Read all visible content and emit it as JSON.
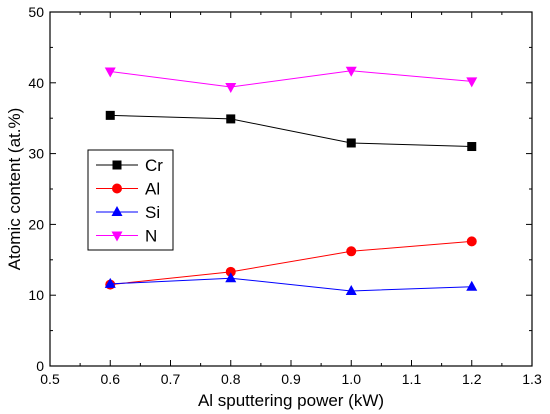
{
  "chart_data": {
    "type": "line",
    "title": "",
    "xlabel": "Al sputtering power (kW)",
    "ylabel": "Atomic content (at.%)",
    "xlim": [
      0.5,
      1.3
    ],
    "ylim": [
      0,
      50
    ],
    "xticks": [
      "0.5",
      "0.6",
      "0.7",
      "0.8",
      "0.9",
      "1.0",
      "1.1",
      "1.2",
      "1.3"
    ],
    "yticks": [
      "0",
      "10",
      "20",
      "30",
      "40",
      "50"
    ],
    "grid": false,
    "legend_position": "middle-left",
    "x": [
      0.6,
      0.8,
      1.0,
      1.2
    ],
    "series": [
      {
        "name": "Cr",
        "values": [
          35.4,
          34.9,
          31.5,
          31.0
        ],
        "color": "#000000",
        "marker": "square"
      },
      {
        "name": "Al",
        "values": [
          11.5,
          13.3,
          16.2,
          17.6
        ],
        "color": "#ff0000",
        "marker": "circle"
      },
      {
        "name": "Si",
        "values": [
          11.6,
          12.4,
          10.6,
          11.2
        ],
        "color": "#0000ff",
        "marker": "triangle-up"
      },
      {
        "name": "N",
        "values": [
          41.6,
          39.4,
          41.7,
          40.2
        ],
        "color": "#ff00ff",
        "marker": "triangle-down"
      }
    ]
  }
}
